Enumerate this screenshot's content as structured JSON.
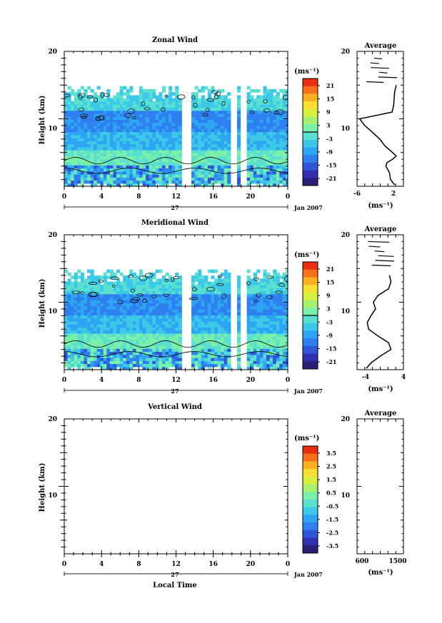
{
  "colors": {
    "colorbar": [
      "#2a1f78",
      "#3030b0",
      "#2f55d8",
      "#2e7ff0",
      "#2ea5f2",
      "#3cc8e8",
      "#5ae0d0",
      "#7af0a8",
      "#a8f070",
      "#d8f040",
      "#f8e030",
      "#f8b020",
      "#f87018",
      "#e83010"
    ],
    "wind_fill_dark": "#2e7ff0",
    "wind_fill_light": "#5ad0f0"
  },
  "panels": {
    "zonal": {
      "title": "Zonal Wind",
      "ylabel": "Height (km)",
      "unit": "(ms⁻¹)",
      "avg_title": "Average",
      "avg_xlabel": "(ms⁻¹)",
      "date": "Jan 2007",
      "day": "27"
    },
    "meridional": {
      "title": "Meridional Wind",
      "ylabel": "Height (km)",
      "unit": "(ms⁻¹)",
      "avg_title": "Average",
      "avg_xlabel": "(ms⁻¹)",
      "date": "Jan 2007",
      "day": "27"
    },
    "vertical": {
      "title": "Vertical Wind",
      "ylabel": "Height (km)",
      "unit": "(ms⁻¹)",
      "avg_title": "Average",
      "avg_xlabel": "(ms⁻¹)",
      "date": "Jan 2007",
      "day": "27",
      "xlabel": "Local Time"
    }
  },
  "chart_data": [
    {
      "type": "heatmap",
      "title": "Zonal Wind",
      "ylabel": "Height (km)",
      "x_ticks": [
        "0",
        "4",
        "8",
        "12",
        "16",
        "20",
        "0"
      ],
      "xlim": [
        0,
        24
      ],
      "y_ticks": [
        "10",
        "20"
      ],
      "ylim": [
        0,
        20
      ],
      "colorbar_ticks": [
        "21",
        "15",
        "9",
        "3",
        "-3",
        "-9",
        "-15",
        "-21"
      ],
      "data_gaps_hours": [
        [
          12.9,
          13.4
        ],
        [
          18.0,
          18.4
        ],
        [
          19.0,
          19.3
        ]
      ],
      "avg_profile": {
        "title": "Average",
        "xlim": [
          -6,
          3
        ],
        "x_ticks": [
          "-6",
          "2"
        ],
        "height_km": [
          0.2,
          1,
          2,
          3,
          3.5,
          4,
          4.5,
          5,
          6,
          7,
          8,
          9,
          10,
          11,
          12,
          13,
          14,
          15
        ],
        "speed": [
          1.3,
          0.5,
          0.3,
          -0.4,
          -0.2,
          0.9,
          1.6,
          0.9,
          -0.6,
          -1.6,
          -3,
          -4.5,
          -5.5,
          0.8,
          1.1,
          1.2,
          1.3,
          1.6
        ]
      }
    },
    {
      "type": "heatmap",
      "title": "Meridional Wind",
      "ylabel": "Height (km)",
      "x_ticks": [
        "0",
        "4",
        "8",
        "12",
        "16",
        "20",
        "0"
      ],
      "xlim": [
        0,
        24
      ],
      "y_ticks": [
        "10",
        "20"
      ],
      "ylim": [
        0,
        20
      ],
      "colorbar_ticks": [
        "21",
        "15",
        "9",
        "3",
        "-3",
        "-9",
        "-15",
        "-21"
      ],
      "data_gaps_hours": [
        [
          12.8,
          13.3
        ],
        [
          18.0,
          18.4
        ],
        [
          19.0,
          19.3
        ]
      ],
      "avg_profile": {
        "title": "Average",
        "xlim": [
          -6,
          4
        ],
        "x_ticks": [
          "-4",
          "4"
        ],
        "height_km": [
          0.2,
          1,
          2,
          3,
          4,
          5,
          6,
          7,
          8,
          9,
          10,
          11,
          12,
          13,
          14
        ],
        "speed": [
          -4,
          -3,
          -1,
          1.3,
          0.8,
          -1.5,
          -3.5,
          -3.8,
          -3,
          -2,
          -2.5,
          -1.5,
          0.8,
          1.3,
          1.0
        ]
      }
    },
    {
      "type": "heatmap",
      "title": "Vertical Wind",
      "ylabel": "Height (km)",
      "xlabel": "Local Time",
      "x_ticks": [
        "0",
        "4",
        "8",
        "12",
        "16",
        "20",
        "0"
      ],
      "xlim": [
        0,
        24
      ],
      "y_ticks": [
        "10",
        "20"
      ],
      "ylim": [
        0,
        20
      ],
      "colorbar_ticks": [
        "3.5",
        "2.5",
        "1.5",
        "0.5",
        "-0.5",
        "-1.5",
        "-2.5",
        "-3.5"
      ],
      "avg_profile": {
        "title": "Average",
        "x_ticks": [
          "600",
          "1500"
        ]
      }
    }
  ]
}
